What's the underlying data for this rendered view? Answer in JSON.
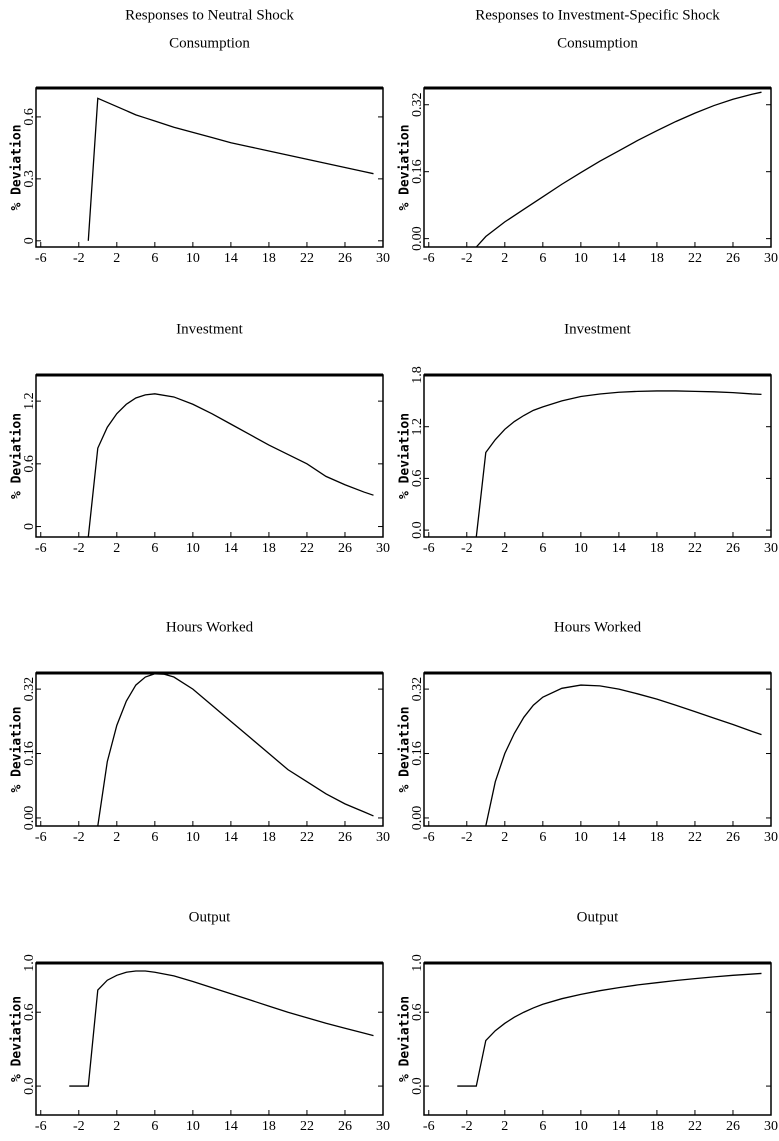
{
  "chart_data": [
    {
      "type": "line",
      "title": "Responses to Neutral Shock",
      "subtitle": "Consumption",
      "ylabel": "% Deviation",
      "color": "#000000",
      "x": [
        -1,
        0,
        1,
        2,
        3,
        4,
        5,
        6,
        8,
        10,
        12,
        14,
        16,
        18,
        20,
        22,
        24,
        26,
        28,
        29
      ],
      "values": [
        0,
        0.69,
        0.67,
        0.65,
        0.63,
        0.61,
        0.595,
        0.58,
        0.55,
        0.525,
        0.5,
        0.475,
        0.455,
        0.435,
        0.415,
        0.395,
        0.375,
        0.355,
        0.335,
        0.325
      ],
      "xlim": [
        -6.5,
        30
      ],
      "xticks": [
        -6,
        -2,
        2,
        6,
        10,
        14,
        18,
        22,
        26,
        30
      ],
      "ylim": [
        -0.03,
        0.74
      ],
      "yticks": [
        0,
        0.3,
        0.6
      ]
    },
    {
      "type": "line",
      "title": "Responses to Investment-Specific Shock",
      "subtitle": "Consumption",
      "ylabel": "% Deviation",
      "color": "#000000",
      "x": [
        -1,
        0,
        2,
        4,
        6,
        8,
        10,
        12,
        14,
        16,
        18,
        20,
        22,
        24,
        26,
        28,
        29
      ],
      "values": [
        -0.02,
        0.005,
        0.04,
        0.07,
        0.1,
        0.13,
        0.158,
        0.185,
        0.21,
        0.235,
        0.258,
        0.28,
        0.3,
        0.318,
        0.333,
        0.345,
        0.35
      ],
      "xlim": [
        -6.5,
        30
      ],
      "xticks": [
        -6,
        -2,
        2,
        6,
        10,
        14,
        18,
        22,
        26,
        30
      ],
      "ylim": [
        -0.02,
        0.36
      ],
      "yticks": [
        {
          "value": 0,
          "label": "0.00"
        },
        0.16,
        0.32
      ]
    },
    {
      "type": "line",
      "title": "Investment",
      "ylabel": "% Deviation",
      "color": "#000000",
      "x": [
        -1,
        0,
        1,
        2,
        3,
        4,
        5,
        6,
        8,
        10,
        12,
        14,
        16,
        18,
        20,
        22,
        24,
        26,
        28,
        29
      ],
      "values": [
        -0.1,
        0.75,
        0.95,
        1.08,
        1.17,
        1.23,
        1.26,
        1.27,
        1.24,
        1.17,
        1.08,
        0.98,
        0.88,
        0.78,
        0.69,
        0.6,
        0.48,
        0.4,
        0.33,
        0.3
      ],
      "xlim": [
        -6.5,
        30
      ],
      "xticks": [
        -6,
        -2,
        2,
        6,
        10,
        14,
        18,
        22,
        26,
        30
      ],
      "ylim": [
        -0.1,
        1.45
      ],
      "yticks": [
        0,
        0.6,
        1.2
      ]
    },
    {
      "type": "line",
      "title": "Investment",
      "ylabel": "% Deviation",
      "color": "#000000",
      "x": [
        -1,
        0,
        1,
        2,
        3,
        4,
        5,
        6,
        8,
        10,
        12,
        14,
        16,
        18,
        20,
        22,
        24,
        26,
        28,
        29
      ],
      "values": [
        -0.08,
        0.9,
        1.05,
        1.17,
        1.26,
        1.33,
        1.39,
        1.43,
        1.5,
        1.55,
        1.58,
        1.6,
        1.61,
        1.615,
        1.615,
        1.61,
        1.605,
        1.595,
        1.58,
        1.575
      ],
      "xlim": [
        -6.5,
        30
      ],
      "xticks": [
        -6,
        -2,
        2,
        6,
        10,
        14,
        18,
        22,
        26,
        30
      ],
      "ylim": [
        -0.08,
        1.8
      ],
      "yticks": [
        {
          "value": 0,
          "label": "0.0"
        },
        0.6,
        1.2,
        1.8
      ]
    },
    {
      "type": "line",
      "title": "Hours Worked",
      "ylabel": "% Deviation",
      "color": "#000000",
      "x": [
        0,
        1,
        2,
        3,
        4,
        5,
        6,
        7,
        8,
        10,
        12,
        14,
        16,
        18,
        20,
        22,
        24,
        26,
        28,
        29
      ],
      "values": [
        -0.02,
        0.14,
        0.23,
        0.29,
        0.33,
        0.35,
        0.358,
        0.357,
        0.35,
        0.32,
        0.28,
        0.24,
        0.2,
        0.16,
        0.12,
        0.09,
        0.06,
        0.035,
        0.015,
        0.005
      ],
      "xlim": [
        -6.5,
        30
      ],
      "xticks": [
        -6,
        -2,
        2,
        6,
        10,
        14,
        18,
        22,
        26,
        30
      ],
      "ylim": [
        -0.02,
        0.36
      ],
      "yticks": [
        {
          "value": 0,
          "label": "0.00"
        },
        0.16,
        0.32
      ]
    },
    {
      "type": "line",
      "title": "Hours Worked",
      "ylabel": "% Deviation",
      "color": "#000000",
      "x": [
        0,
        1,
        2,
        3,
        4,
        5,
        6,
        8,
        10,
        12,
        14,
        16,
        18,
        20,
        22,
        24,
        26,
        28,
        29
      ],
      "values": [
        -0.02,
        0.09,
        0.16,
        0.21,
        0.25,
        0.28,
        0.3,
        0.322,
        0.33,
        0.328,
        0.32,
        0.308,
        0.295,
        0.28,
        0.264,
        0.248,
        0.232,
        0.215,
        0.207
      ],
      "xlim": [
        -6.5,
        30
      ],
      "xticks": [
        -6,
        -2,
        2,
        6,
        10,
        14,
        18,
        22,
        26,
        30
      ],
      "ylim": [
        -0.02,
        0.36
      ],
      "yticks": [
        {
          "value": 0,
          "label": "0.00"
        },
        0.16,
        0.32
      ]
    },
    {
      "type": "line",
      "title": "Output",
      "ylabel": "% Deviation",
      "color": "#000000",
      "x": [
        -3,
        -2,
        -1,
        0,
        1,
        2,
        3,
        4,
        5,
        6,
        8,
        10,
        12,
        14,
        16,
        18,
        20,
        22,
        24,
        26,
        28,
        29
      ],
      "values": [
        0,
        0,
        0,
        0.78,
        0.86,
        0.9,
        0.925,
        0.935,
        0.935,
        0.925,
        0.895,
        0.85,
        0.8,
        0.75,
        0.7,
        0.65,
        0.6,
        0.555,
        0.51,
        0.47,
        0.43,
        0.41
      ],
      "xlim": [
        -6.5,
        30
      ],
      "xticks": [
        -6,
        -2,
        2,
        6,
        10,
        14,
        18,
        22,
        26,
        30
      ],
      "ylim": [
        -0.235,
        1.0
      ],
      "yticks": [
        {
          "value": 0,
          "label": "0.0"
        },
        0.6,
        {
          "value": 1,
          "label": "1.0"
        }
      ]
    },
    {
      "type": "line",
      "title": "Output",
      "ylabel": "% Deviation",
      "color": "#000000",
      "x": [
        -3,
        -2,
        -1,
        0,
        1,
        2,
        3,
        4,
        5,
        6,
        8,
        10,
        12,
        14,
        16,
        18,
        20,
        22,
        24,
        26,
        28,
        29
      ],
      "values": [
        0,
        0,
        0,
        0.37,
        0.45,
        0.51,
        0.56,
        0.6,
        0.635,
        0.665,
        0.71,
        0.745,
        0.775,
        0.8,
        0.822,
        0.84,
        0.858,
        0.873,
        0.887,
        0.9,
        0.91,
        0.915
      ],
      "xlim": [
        -6.5,
        30
      ],
      "xticks": [
        -6,
        -2,
        2,
        6,
        10,
        14,
        18,
        22,
        26,
        30
      ],
      "ylim": [
        -0.235,
        1.0
      ],
      "yticks": [
        {
          "value": 0,
          "label": "0.0"
        },
        0.6,
        {
          "value": 1,
          "label": "1.0"
        }
      ]
    }
  ]
}
